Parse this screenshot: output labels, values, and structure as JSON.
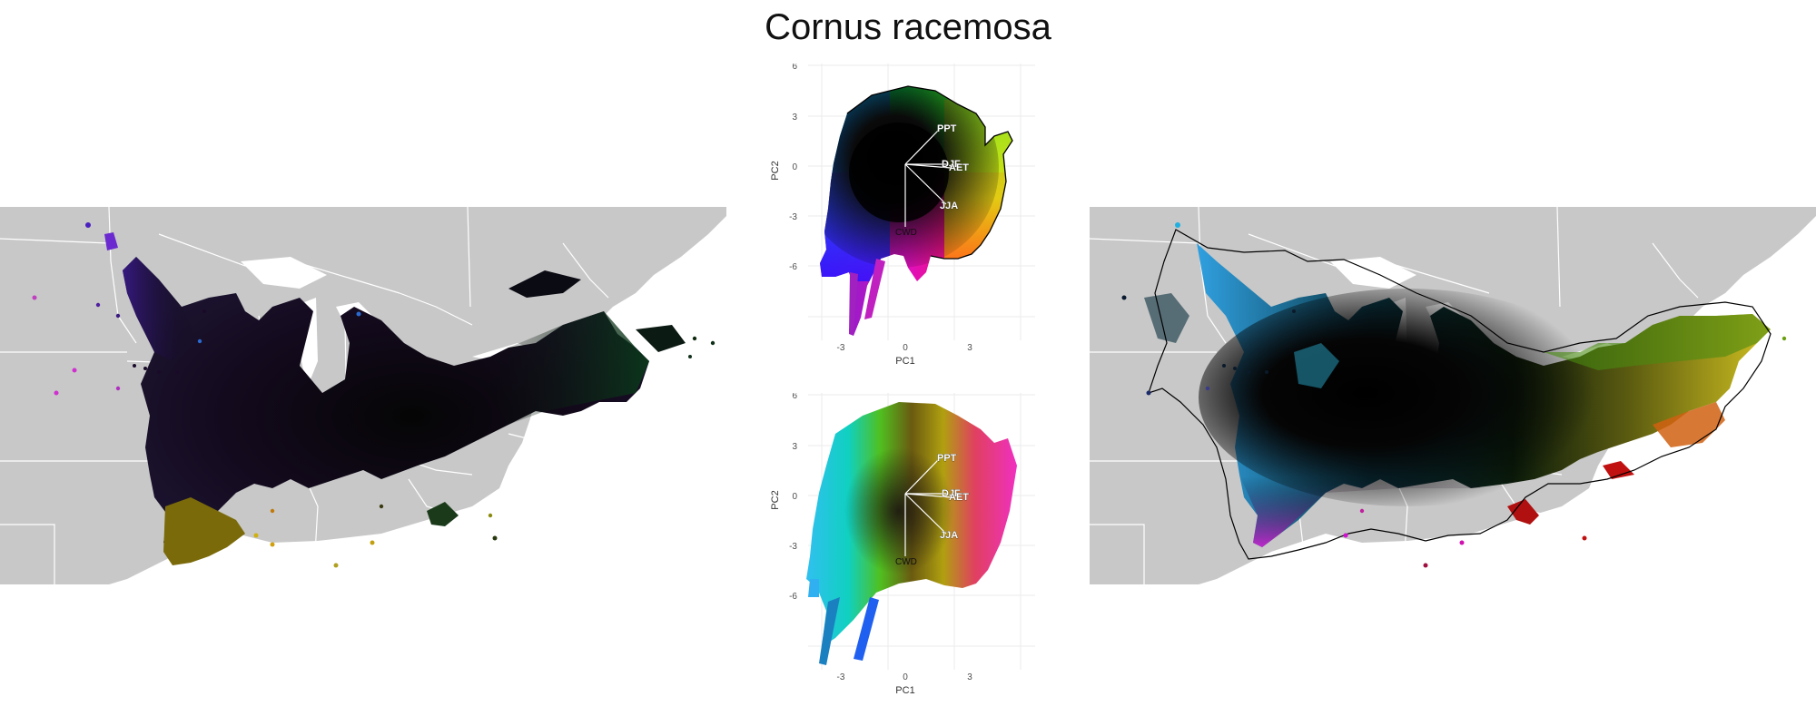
{
  "title": "Cornus racemosa",
  "colors": {
    "background": "#ffffff",
    "map_land": "#c8c8c8",
    "map_borders": "#ffffff",
    "hull_line": "#000000",
    "grid": "#ebebeb",
    "vector": "#ffffff"
  },
  "chart_data": [
    {
      "type": "scatter",
      "panel": "pca-top",
      "xlabel": "PC1",
      "ylabel": "PC2",
      "xlim": [
        -5,
        5
      ],
      "ylim": [
        -7,
        6.5
      ],
      "xticks": [
        -3,
        0,
        3
      ],
      "yticks": [
        -6,
        -3,
        0,
        3,
        6
      ],
      "grid": true,
      "coloring": "continuous RGB by position in PC space, black at center",
      "vectors": [
        {
          "label": "PPT",
          "x": 2.0,
          "y": 2.1
        },
        {
          "label": "DJF",
          "x": 2.5,
          "y": 0.0
        },
        {
          "label": "AET",
          "x": 2.6,
          "y": -0.2
        },
        {
          "label": "JJA",
          "x": 2.4,
          "y": -2.4
        },
        {
          "label": "CWD",
          "x": 0.0,
          "y": -3.7
        }
      ]
    },
    {
      "type": "scatter",
      "panel": "pca-bottom",
      "xlabel": "PC1",
      "ylabel": "PC2",
      "xlim": [
        -5,
        5
      ],
      "ylim": [
        -7,
        6.5
      ],
      "xticks": [
        -3,
        0,
        3
      ],
      "yticks": [
        -6,
        -3,
        0,
        3,
        6
      ],
      "grid": true,
      "coloring": "RGB colors of the individual points",
      "vectors": [
        {
          "label": "PPT",
          "x": 2.0,
          "y": 2.1
        },
        {
          "label": "DJF",
          "x": 2.5,
          "y": 0.0
        },
        {
          "label": "AET",
          "x": 2.6,
          "y": -0.2
        },
        {
          "label": "JJA",
          "x": 2.4,
          "y": -2.4
        },
        {
          "label": "CWD",
          "x": 0.0,
          "y": -3.7
        }
      ]
    }
  ]
}
